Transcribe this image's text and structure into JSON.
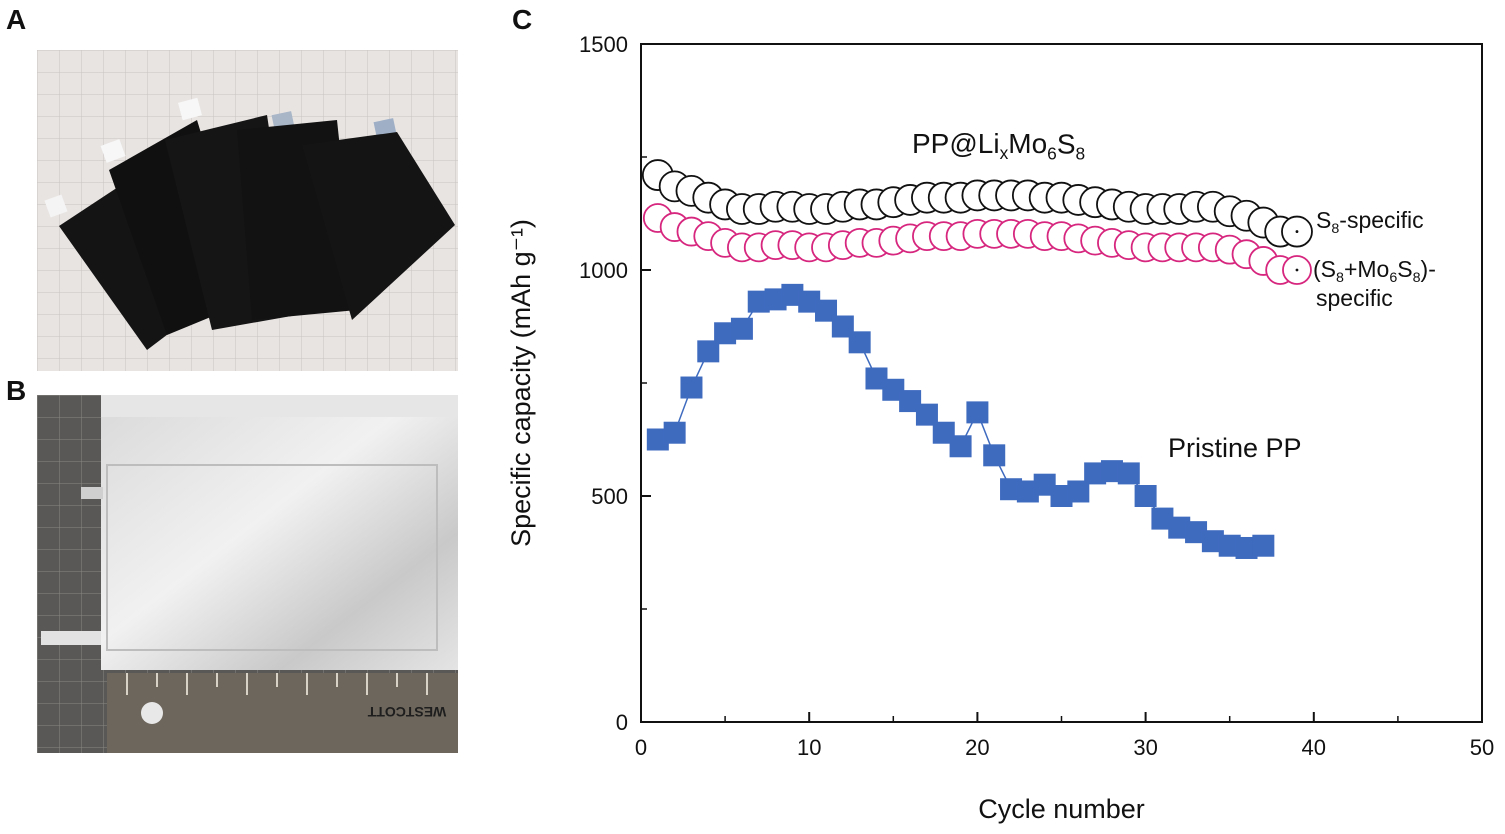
{
  "panels": {
    "a": "A",
    "b": "B",
    "c": "C"
  },
  "photos": {
    "a_description_icon": "pouch-cell-electrodes-photo",
    "b_description_icon": "sealed-pouch-cell-photo",
    "ruler_brand": "WESTCOTT"
  },
  "colors": {
    "pp_coated_s8": "#111111",
    "pp_coated_total": "#d6267e",
    "pristine": "#3f6bbf",
    "pristine_label": "#3d2a8c"
  },
  "chart_data": {
    "type": "scatter",
    "xlabel": "Cycle number",
    "ylabel": "Specific capacity (mAh g⁻¹)",
    "xlim": [
      0,
      50
    ],
    "ylim": [
      0,
      1500
    ],
    "xticks": [
      0,
      10,
      20,
      30,
      40,
      50
    ],
    "yticks": [
      0,
      500,
      1000,
      1500
    ],
    "grid": false,
    "annotations": {
      "group_label": "PP@LixMo6S8",
      "s8_label": "S8-specific",
      "total_label_line1": "(S8+Mo6S8)-",
      "total_label_line2": "specific",
      "pristine_label": "Pristine PP"
    },
    "series": [
      {
        "name": "S8-specific",
        "marker": "open-circle",
        "x": [
          1,
          2,
          3,
          4,
          5,
          6,
          7,
          8,
          9,
          10,
          11,
          12,
          13,
          14,
          15,
          16,
          17,
          18,
          19,
          20,
          21,
          22,
          23,
          24,
          25,
          26,
          27,
          28,
          29,
          30,
          31,
          32,
          33,
          34,
          35,
          36,
          37,
          38,
          39
        ],
        "values": [
          1210,
          1185,
          1175,
          1160,
          1145,
          1135,
          1135,
          1140,
          1140,
          1135,
          1135,
          1140,
          1145,
          1145,
          1150,
          1155,
          1160,
          1160,
          1160,
          1165,
          1165,
          1165,
          1165,
          1160,
          1160,
          1155,
          1150,
          1145,
          1140,
          1135,
          1135,
          1135,
          1140,
          1140,
          1130,
          1120,
          1105,
          1085,
          1085
        ]
      },
      {
        "name": "(S8+Mo6S8)-specific",
        "marker": "open-circle",
        "x": [
          1,
          2,
          3,
          4,
          5,
          6,
          7,
          8,
          9,
          10,
          11,
          12,
          13,
          14,
          15,
          16,
          17,
          18,
          19,
          20,
          21,
          22,
          23,
          24,
          25,
          26,
          27,
          28,
          29,
          30,
          31,
          32,
          33,
          34,
          35,
          36,
          37,
          38,
          39
        ],
        "values": [
          1115,
          1095,
          1085,
          1075,
          1060,
          1050,
          1050,
          1055,
          1055,
          1050,
          1050,
          1055,
          1060,
          1060,
          1065,
          1070,
          1075,
          1075,
          1075,
          1080,
          1080,
          1080,
          1080,
          1075,
          1075,
          1070,
          1065,
          1060,
          1055,
          1050,
          1050,
          1050,
          1050,
          1050,
          1045,
          1035,
          1020,
          1000,
          1000
        ]
      },
      {
        "name": "Pristine PP",
        "marker": "filled-square",
        "x": [
          1,
          2,
          3,
          4,
          5,
          6,
          7,
          8,
          9,
          10,
          11,
          12,
          13,
          14,
          15,
          16,
          17,
          18,
          19,
          20,
          21,
          22,
          23,
          24,
          25,
          26,
          27,
          28,
          29,
          30,
          31,
          32,
          33,
          34,
          35,
          36,
          37
        ],
        "values": [
          625,
          640,
          740,
          820,
          860,
          870,
          930,
          935,
          945,
          930,
          910,
          875,
          840,
          760,
          735,
          710,
          680,
          640,
          610,
          685,
          590,
          515,
          510,
          525,
          500,
          510,
          550,
          555,
          550,
          500,
          450,
          430,
          420,
          400,
          390,
          385,
          390
        ]
      }
    ]
  }
}
